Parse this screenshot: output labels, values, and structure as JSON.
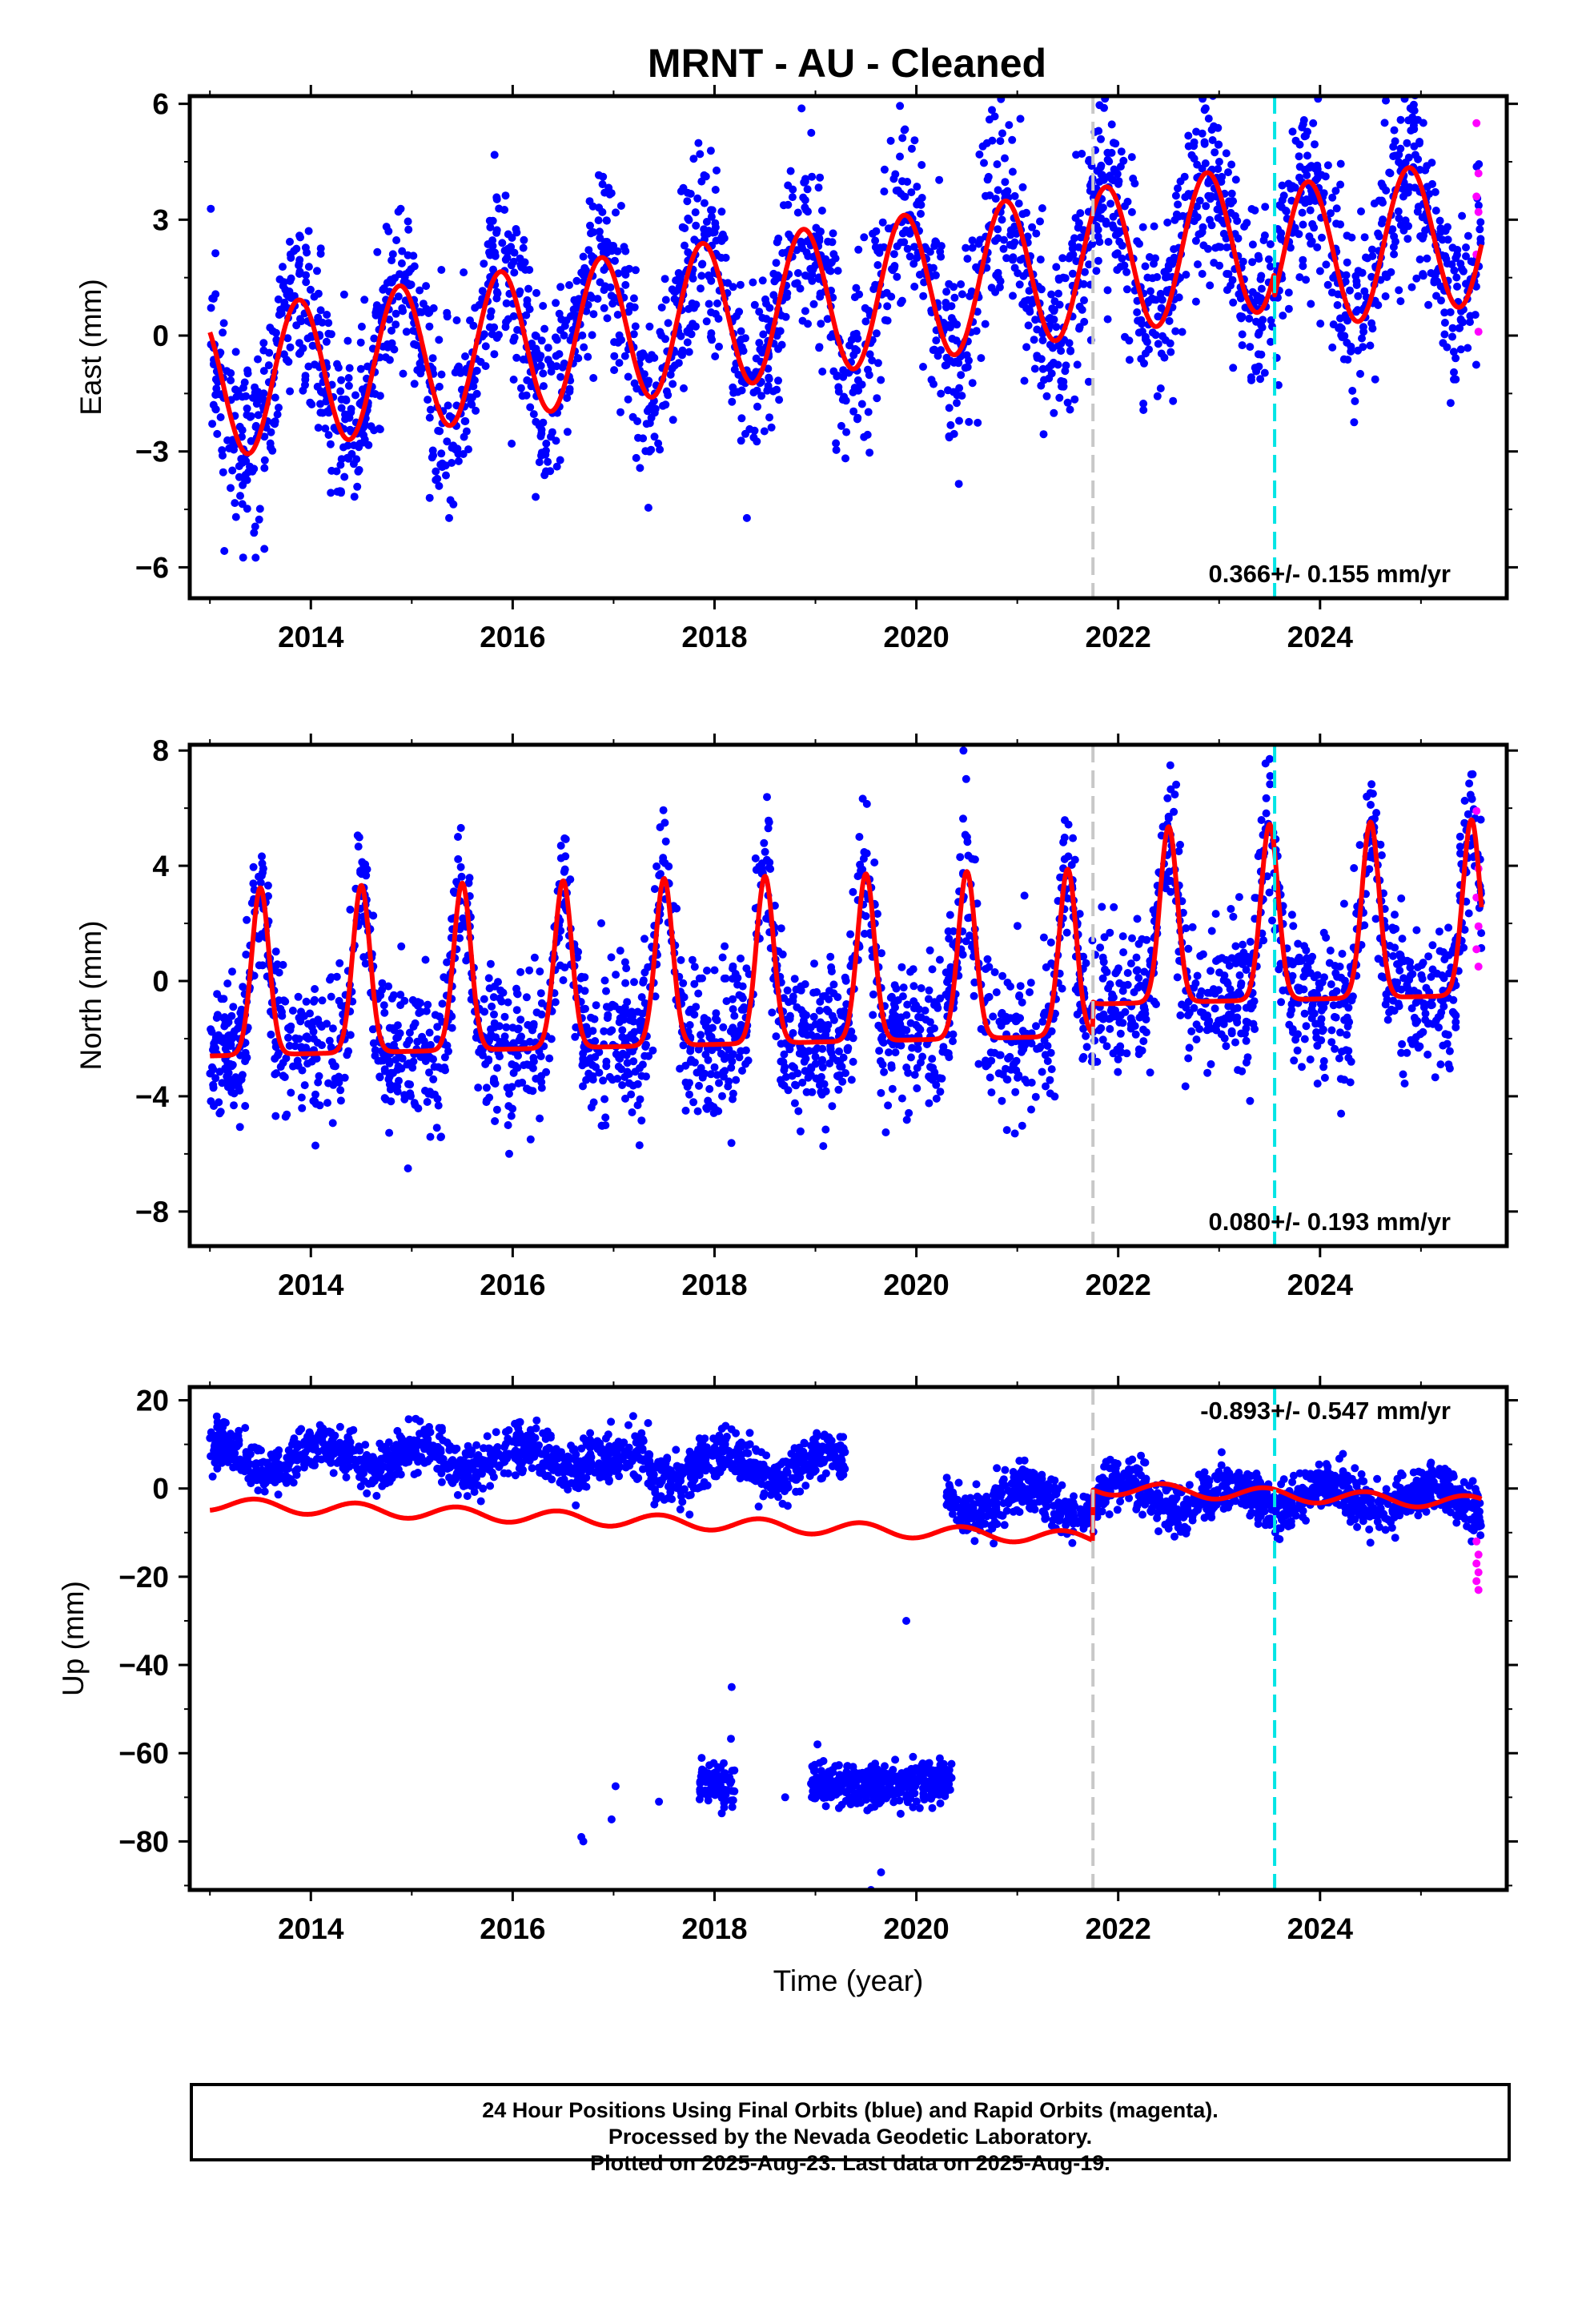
{
  "title": "MRNT  - AU - Cleaned",
  "colors": {
    "final_points": "#0000ff",
    "rapid_points": "#ff00ff",
    "model_line": "#ff0000",
    "equipment_change": "#c8c8c8",
    "earthquake_marker": "#00e5e5"
  },
  "chart_data": [
    {
      "type": "scatter",
      "id": "east",
      "ylabel": "East (mm)",
      "xlabel": "",
      "xlim": [
        2012.8,
        2025.85
      ],
      "ylim": [
        -6.8,
        6.2
      ],
      "yticks": [
        6,
        3,
        0,
        -3,
        -6
      ],
      "xticks": [
        2014,
        2016,
        2018,
        2020,
        2022,
        2024
      ],
      "rate_label": "0.366+/- 0.155 mm/yr",
      "rate_position": "bottom-right",
      "vertical_lines": [
        {
          "x": 2021.75,
          "style": "gray-dashed"
        },
        {
          "x": 2023.55,
          "style": "cyan-dashed"
        }
      ],
      "model": {
        "description": "trend plus annual sinusoid",
        "offset_at_2013": -1.3,
        "rate_mm_per_yr": 0.366,
        "annual_amplitude": 1.9,
        "annual_peak_year_fraction": 0.88,
        "steps": [
          {
            "x": 2023.55,
            "size": -0.6
          }
        ]
      },
      "scatter_spread_mm": 1.2,
      "rapid_points": [
        5.5,
        4.2,
        3.6,
        3.2,
        2.1,
        0.1
      ]
    },
    {
      "type": "scatter",
      "id": "north",
      "ylabel": "North (mm)",
      "xlabel": "",
      "xlim": [
        2012.8,
        2025.85
      ],
      "ylim": [
        -9.2,
        8.2
      ],
      "yticks": [
        8,
        4,
        0,
        -4,
        -8
      ],
      "xticks": [
        2014,
        2016,
        2018,
        2020,
        2022,
        2024
      ],
      "rate_label": "0.080+/- 0.193 mm/yr",
      "rate_position": "bottom-right",
      "vertical_lines": [
        {
          "x": 2021.75,
          "style": "gray-dashed"
        },
        {
          "x": 2023.55,
          "style": "cyan-dashed"
        }
      ],
      "model": {
        "description": "trend plus sharp annual peak near mid-year",
        "offset_at_2013": -2.6,
        "rate_mm_per_yr": 0.08,
        "annual_peak_height": 5.8,
        "annual_peak_year_fraction": 0.5,
        "steps": [
          {
            "x": 2021.75,
            "size": 1.1
          }
        ]
      },
      "scatter_spread_mm": 1.3,
      "rapid_points": [
        5.9,
        3.9,
        2.9,
        1.9,
        1.1,
        0.5
      ]
    },
    {
      "type": "scatter",
      "id": "up",
      "ylabel": "Up (mm)",
      "xlabel": "Time (year)",
      "xlim": [
        2012.8,
        2025.85
      ],
      "ylim": [
        -91,
        23
      ],
      "yticks": [
        20,
        0,
        -20,
        -40,
        -60,
        -80
      ],
      "xticks": [
        2014,
        2016,
        2018,
        2020,
        2022,
        2024
      ],
      "rate_label": "-0.893+/- 0.547 mm/yr",
      "rate_position": "top-right",
      "vertical_lines": [
        {
          "x": 2021.75,
          "style": "gray-dashed"
        },
        {
          "x": 2023.55,
          "style": "cyan-dashed"
        }
      ],
      "model": {
        "description": "trend plus small annual sinusoid with step",
        "offset_at_2013": -3.5,
        "rate_mm_per_yr": -0.893,
        "annual_amplitude": 1.5,
        "annual_peak_year_fraction": 0.45,
        "steps": [
          {
            "x": 2021.75,
            "size": 11.5
          }
        ]
      },
      "data_clusters": [
        {
          "x_range": [
            2013.0,
            2016.9
          ],
          "center": 7,
          "spread": 4.5
        },
        {
          "x_range": [
            2016.9,
            2019.3
          ],
          "center": 5,
          "spread": 4.5
        },
        {
          "x_range": [
            2020.3,
            2021.75
          ],
          "center": -3,
          "spread": 4.5
        },
        {
          "x_range": [
            2021.75,
            2025.6
          ],
          "center": -2,
          "spread": 4.5
        },
        {
          "x_range": [
            2017.85,
            2018.2
          ],
          "center": -67,
          "spread": 4
        },
        {
          "x_range": [
            2018.95,
            2020.35
          ],
          "center": -67,
          "spread": 4
        }
      ],
      "outliers": [
        [
          2016.68,
          -79
        ],
        [
          2016.7,
          -80
        ],
        [
          2016.98,
          -75
        ],
        [
          2017.02,
          -67.5
        ],
        [
          2017.45,
          -71
        ],
        [
          2018.17,
          -45
        ],
        [
          2018.7,
          -70
        ],
        [
          2019.9,
          -30
        ],
        [
          2019.65,
          -87
        ],
        [
          2019.55,
          -91
        ],
        [
          2019.02,
          -58
        ]
      ],
      "rapid_points": [
        -12,
        -15,
        -17,
        -19,
        -21,
        -23
      ]
    }
  ],
  "footer": {
    "line1": "24 Hour Positions Using Final Orbits (blue) and Rapid Orbits (magenta).",
    "line2": "Processed by the Nevada Geodetic Laboratory.",
    "line3": "Plotted on 2025-Aug-23. Last data on 2025-Aug-19."
  }
}
